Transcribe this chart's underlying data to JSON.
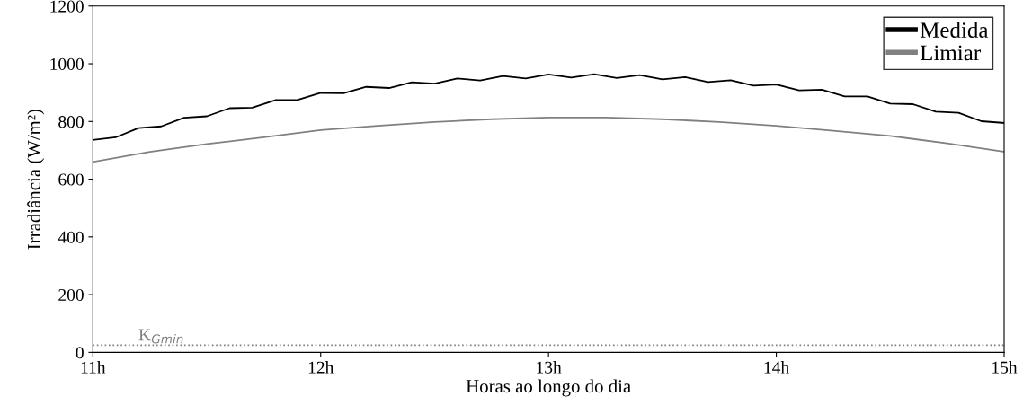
{
  "chart_data": {
    "type": "line",
    "xlabel": "Horas ao longo do dia",
    "ylabel": "Irradiância (W/m²)",
    "xlim": [
      11,
      15
    ],
    "xticks": [
      {
        "value": 11,
        "label": "11h"
      },
      {
        "value": 12,
        "label": "12h"
      },
      {
        "value": 13,
        "label": "13h"
      },
      {
        "value": 14,
        "label": "14h"
      },
      {
        "value": 15,
        "label": "15h"
      }
    ],
    "ylim": [
      0,
      1200
    ],
    "yticks": [
      0,
      200,
      400,
      600,
      800,
      1000,
      1200
    ],
    "series": [
      {
        "name": "Medida",
        "color": "#000000",
        "x": [
          11.0,
          11.1,
          11.2,
          11.3,
          11.4,
          11.5,
          11.6,
          11.7,
          11.8,
          11.9,
          12.0,
          12.1,
          12.2,
          12.3,
          12.4,
          12.5,
          12.6,
          12.7,
          12.8,
          12.9,
          13.0,
          13.1,
          13.2,
          13.3,
          13.4,
          13.5,
          13.6,
          13.7,
          13.8,
          13.9,
          14.0,
          14.1,
          14.2,
          14.3,
          14.4,
          14.5,
          14.6,
          14.7,
          14.8,
          14.9,
          15.0
        ],
        "values": [
          736,
          745,
          777,
          783,
          813,
          818,
          846,
          848,
          874,
          875,
          899,
          898,
          920,
          916,
          936,
          931,
          949,
          942,
          958,
          949,
          963,
          952,
          964,
          951,
          961,
          946,
          954,
          937,
          943,
          924,
          928,
          908,
          910,
          887,
          887,
          862,
          860,
          834,
          830,
          801,
          795
        ]
      },
      {
        "name": "Limiar",
        "color": "#808080",
        "x": [
          11,
          11.25,
          11.5,
          11.75,
          12,
          12.25,
          12.5,
          12.75,
          13,
          13.25,
          13.5,
          13.75,
          14,
          14.25,
          14.5,
          14.75,
          15
        ],
        "values": [
          660,
          695,
          722,
          745,
          770,
          785,
          798,
          808,
          814,
          814,
          808,
          798,
          785,
          768,
          750,
          724,
          695
        ]
      }
    ],
    "ref_lines": [
      {
        "axis": "y",
        "value": 25,
        "label": "K$_{Gmin}$",
        "color": "#808080",
        "line_style": "dotted"
      }
    ],
    "legend": "top right",
    "grid": false,
    "marker": "none",
    "line_style": "solid"
  }
}
